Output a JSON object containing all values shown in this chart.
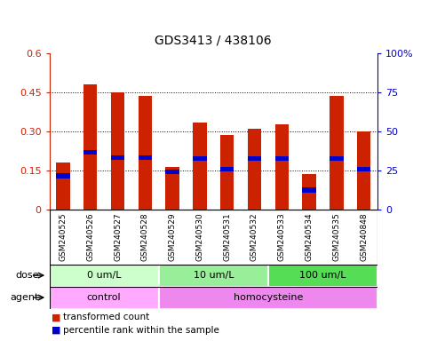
{
  "title": "GDS3413 / 438106",
  "samples": [
    "GSM240525",
    "GSM240526",
    "GSM240527",
    "GSM240528",
    "GSM240529",
    "GSM240530",
    "GSM240531",
    "GSM240532",
    "GSM240533",
    "GSM240534",
    "GSM240535",
    "GSM240848"
  ],
  "transformed_counts": [
    0.18,
    0.48,
    0.45,
    0.435,
    0.165,
    0.335,
    0.285,
    0.31,
    0.325,
    0.135,
    0.435,
    0.3
  ],
  "percentile_ranks": [
    0.13,
    0.22,
    0.2,
    0.2,
    0.145,
    0.195,
    0.155,
    0.195,
    0.195,
    0.075,
    0.195,
    0.155
  ],
  "bar_color": "#cc2200",
  "pct_color": "#0000cc",
  "ylim": [
    0,
    0.6
  ],
  "yticks": [
    0,
    0.15,
    0.3,
    0.45,
    0.6
  ],
  "ytick_labels": [
    "0",
    "0.15",
    "0.30",
    "0.45",
    "0.6"
  ],
  "right_yticks": [
    0,
    0.25,
    0.5,
    0.75,
    1.0
  ],
  "right_ytick_labels": [
    "0",
    "25",
    "50",
    "75",
    "100%"
  ],
  "dose_groups": [
    {
      "label": "0 um/L",
      "start": 0,
      "end": 4,
      "color": "#ccffcc"
    },
    {
      "label": "10 um/L",
      "start": 4,
      "end": 8,
      "color": "#99ee99"
    },
    {
      "label": "100 um/L",
      "start": 8,
      "end": 12,
      "color": "#55dd55"
    }
  ],
  "agent_groups": [
    {
      "label": "control",
      "start": 0,
      "end": 4,
      "color": "#ffaaff"
    },
    {
      "label": "homocysteine",
      "start": 4,
      "end": 12,
      "color": "#ee88ee"
    }
  ],
  "dose_label": "dose",
  "agent_label": "agent",
  "legend_items": [
    {
      "label": "transformed count",
      "color": "#cc2200"
    },
    {
      "label": "percentile rank within the sample",
      "color": "#0000cc"
    }
  ],
  "plot_bg": "white",
  "bar_width": 0.5
}
